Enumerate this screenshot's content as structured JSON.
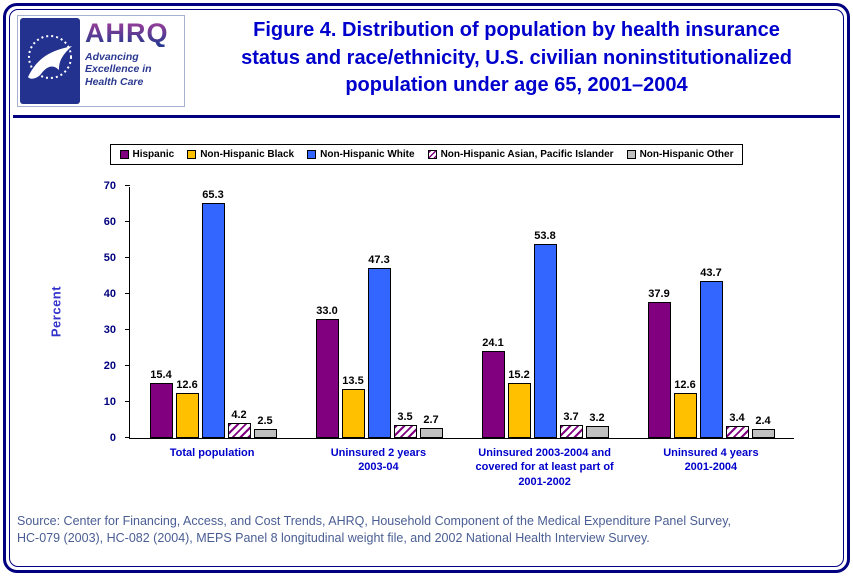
{
  "page": {
    "border_color": "#000080",
    "background": "#FFFFFF"
  },
  "header": {
    "title_color": "#0000CC",
    "title_lines": [
      "Figure 4. Distribution of population by health insurance",
      "status and race/ethnicity, U.S. civilian noninstitutionalized",
      "population under age 65, 2001–2004"
    ],
    "logos": {
      "hhs_logo": "hhs-eagle-seal",
      "ahrq_name": "AHRQ",
      "ahrq_tagline_lines": [
        "Advancing",
        "Excellence in",
        "Health Care"
      ]
    }
  },
  "chart_data": {
    "type": "bar",
    "title": "",
    "xlabel": "",
    "ylabel": "Percent",
    "ylim": [
      0,
      70
    ],
    "yticks": [
      0,
      10,
      20,
      30,
      40,
      50,
      60,
      70
    ],
    "grid": false,
    "legend_position": "top",
    "categories": [
      "Total population",
      "Uninsured 2 years\n2003-04",
      "Uninsured 2003-2004 and\ncovered for at least part of\n2001-2002",
      "Uninsured 4 years\n2001-2004"
    ],
    "series": [
      {
        "name": "Hispanic",
        "color": "#800080",
        "pattern": "solid",
        "values": [
          15.4,
          33.0,
          24.1,
          37.9
        ]
      },
      {
        "name": "Non-Hispanic Black",
        "color": "#FFC000",
        "pattern": "solid",
        "values": [
          12.6,
          13.5,
          15.2,
          12.6
        ]
      },
      {
        "name": "Non-Hispanic White",
        "color": "#3366FF",
        "pattern": "solid",
        "values": [
          65.3,
          47.3,
          53.8,
          43.7
        ]
      },
      {
        "name": "Non-Hispanic Asian, Pacific Islander",
        "color": "#800080",
        "pattern": "diagonal-hatch",
        "values": [
          4.2,
          3.5,
          3.7,
          3.4
        ]
      },
      {
        "name": "Non-Hispanic Other",
        "color": "#C0C0C0",
        "pattern": "solid",
        "values": [
          2.5,
          2.7,
          3.2,
          2.4
        ]
      }
    ]
  },
  "source": {
    "lines": [
      "Source: Center for Financing, Access, and Cost Trends, AHRQ, Household Component of the Medical Expenditure Panel Survey,",
      "HC-079 (2003), HC-082 (2004), MEPS Panel 8 longitudinal weight file, and 2002 National Health Interview Survey."
    ]
  }
}
